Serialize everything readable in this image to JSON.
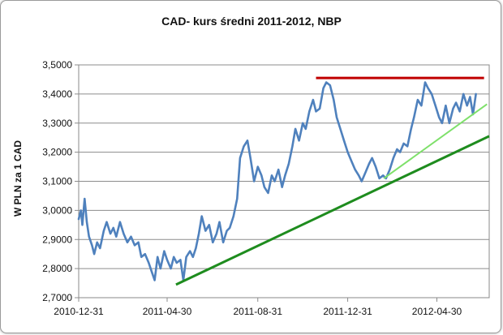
{
  "chart_data": {
    "type": "line",
    "title": "CAD- kurs średni  2011-2012, NBP",
    "xlabel": "",
    "ylabel": "W PLN za 1 CAD",
    "x_ticks": [
      "2010-12-31",
      "2011-04-30",
      "2011-08-31",
      "2011-12-31",
      "2012-04-30"
    ],
    "y_ticks": [
      "2,7000",
      "2,8000",
      "2,9000",
      "3,0000",
      "3,1000",
      "3,2000",
      "3,3000",
      "3,4000",
      "3,5000"
    ],
    "ylim": [
      2.7,
      3.5
    ],
    "grid": true,
    "legend": "none",
    "series": [
      {
        "color": "#4f81bd",
        "points": [
          [
            "2010-12-31",
            2.97
          ],
          [
            "2011-01-03",
            3.0
          ],
          [
            "2011-01-05",
            2.95
          ],
          [
            "2011-01-08",
            3.04
          ],
          [
            "2011-01-11",
            2.96
          ],
          [
            "2011-01-14",
            2.91
          ],
          [
            "2011-01-18",
            2.88
          ],
          [
            "2011-01-21",
            2.85
          ],
          [
            "2011-01-25",
            2.89
          ],
          [
            "2011-01-29",
            2.87
          ],
          [
            "2011-02-03",
            2.93
          ],
          [
            "2011-02-07",
            2.96
          ],
          [
            "2011-02-12",
            2.92
          ],
          [
            "2011-02-16",
            2.94
          ],
          [
            "2011-02-20",
            2.91
          ],
          [
            "2011-02-25",
            2.96
          ],
          [
            "2011-03-02",
            2.92
          ],
          [
            "2011-03-07",
            2.89
          ],
          [
            "2011-03-12",
            2.91
          ],
          [
            "2011-03-17",
            2.88
          ],
          [
            "2011-03-22",
            2.89
          ],
          [
            "2011-03-26",
            2.84
          ],
          [
            "2011-03-31",
            2.85
          ],
          [
            "2011-04-05",
            2.82
          ],
          [
            "2011-04-09",
            2.79
          ],
          [
            "2011-04-13",
            2.76
          ],
          [
            "2011-04-17",
            2.84
          ],
          [
            "2011-04-21",
            2.8
          ],
          [
            "2011-04-26",
            2.86
          ],
          [
            "2011-04-30",
            2.83
          ],
          [
            "2011-05-05",
            2.8
          ],
          [
            "2011-05-09",
            2.84
          ],
          [
            "2011-05-13",
            2.82
          ],
          [
            "2011-05-18",
            2.83
          ],
          [
            "2011-05-22",
            2.76
          ],
          [
            "2011-05-26",
            2.84
          ],
          [
            "2011-05-31",
            2.86
          ],
          [
            "2011-06-04",
            2.84
          ],
          [
            "2011-06-08",
            2.87
          ],
          [
            "2011-06-12",
            2.92
          ],
          [
            "2011-06-16",
            2.98
          ],
          [
            "2011-06-21",
            2.93
          ],
          [
            "2011-06-26",
            2.95
          ],
          [
            "2011-07-01",
            2.89
          ],
          [
            "2011-07-06",
            2.92
          ],
          [
            "2011-07-10",
            2.96
          ],
          [
            "2011-07-15",
            2.89
          ],
          [
            "2011-07-20",
            2.93
          ],
          [
            "2011-07-24",
            2.94
          ],
          [
            "2011-07-29",
            2.98
          ],
          [
            "2011-08-03",
            3.04
          ],
          [
            "2011-08-07",
            3.18
          ],
          [
            "2011-08-12",
            3.22
          ],
          [
            "2011-08-17",
            3.24
          ],
          [
            "2011-08-21",
            3.18
          ],
          [
            "2011-08-26",
            3.1
          ],
          [
            "2011-08-31",
            3.15
          ],
          [
            "2011-09-05",
            3.12
          ],
          [
            "2011-09-09",
            3.08
          ],
          [
            "2011-09-14",
            3.06
          ],
          [
            "2011-09-19",
            3.12
          ],
          [
            "2011-09-23",
            3.1
          ],
          [
            "2011-09-28",
            3.14
          ],
          [
            "2011-10-03",
            3.08
          ],
          [
            "2011-10-07",
            3.12
          ],
          [
            "2011-10-12",
            3.16
          ],
          [
            "2011-10-17",
            3.22
          ],
          [
            "2011-10-21",
            3.28
          ],
          [
            "2011-10-26",
            3.24
          ],
          [
            "2011-10-31",
            3.3
          ],
          [
            "2011-11-04",
            3.28
          ],
          [
            "2011-11-09",
            3.34
          ],
          [
            "2011-11-14",
            3.38
          ],
          [
            "2011-11-18",
            3.34
          ],
          [
            "2011-11-23",
            3.35
          ],
          [
            "2011-11-28",
            3.42
          ],
          [
            "2011-12-02",
            3.44
          ],
          [
            "2011-12-07",
            3.43
          ],
          [
            "2011-12-12",
            3.38
          ],
          [
            "2011-12-16",
            3.32
          ],
          [
            "2011-12-21",
            3.28
          ],
          [
            "2011-12-26",
            3.24
          ],
          [
            "2011-12-31",
            3.2
          ],
          [
            "2012-01-05",
            3.17
          ],
          [
            "2012-01-10",
            3.14
          ],
          [
            "2012-01-15",
            3.12
          ],
          [
            "2012-01-19",
            3.1
          ],
          [
            "2012-01-24",
            3.13
          ],
          [
            "2012-01-29",
            3.16
          ],
          [
            "2012-02-02",
            3.18
          ],
          [
            "2012-02-07",
            3.15
          ],
          [
            "2012-02-12",
            3.11
          ],
          [
            "2012-02-17",
            3.12
          ],
          [
            "2012-02-21",
            3.11
          ],
          [
            "2012-02-26",
            3.14
          ],
          [
            "2012-03-02",
            3.18
          ],
          [
            "2012-03-07",
            3.21
          ],
          [
            "2012-03-11",
            3.2
          ],
          [
            "2012-03-16",
            3.23
          ],
          [
            "2012-03-21",
            3.22
          ],
          [
            "2012-03-26",
            3.28
          ],
          [
            "2012-03-30",
            3.32
          ],
          [
            "2012-04-04",
            3.38
          ],
          [
            "2012-04-09",
            3.36
          ],
          [
            "2012-04-14",
            3.44
          ],
          [
            "2012-04-18",
            3.42
          ],
          [
            "2012-04-23",
            3.4
          ],
          [
            "2012-04-28",
            3.36
          ],
          [
            "2012-05-03",
            3.32
          ],
          [
            "2012-05-07",
            3.3
          ],
          [
            "2012-05-12",
            3.36
          ],
          [
            "2012-05-17",
            3.3
          ],
          [
            "2012-05-22",
            3.35
          ],
          [
            "2012-05-26",
            3.37
          ],
          [
            "2012-05-31",
            3.34
          ],
          [
            "2012-06-05",
            3.4
          ],
          [
            "2012-06-10",
            3.36
          ],
          [
            "2012-06-14",
            3.39
          ],
          [
            "2012-06-18",
            3.33
          ],
          [
            "2012-06-22",
            3.4
          ]
        ]
      }
    ],
    "trend_lines": [
      {
        "color": "#c00000",
        "x1": "2011-11-18",
        "y1": 3.455,
        "x2": "2012-07-03",
        "y2": 3.455
      },
      {
        "color": "#1e8c1e",
        "x1": "2011-05-12",
        "y1": 2.745,
        "x2": "2012-07-10",
        "y2": 3.255
      },
      {
        "color": "#7ee06a",
        "x1": "2012-02-18",
        "y1": 3.11,
        "x2": "2012-07-07",
        "y2": 3.365
      }
    ]
  }
}
